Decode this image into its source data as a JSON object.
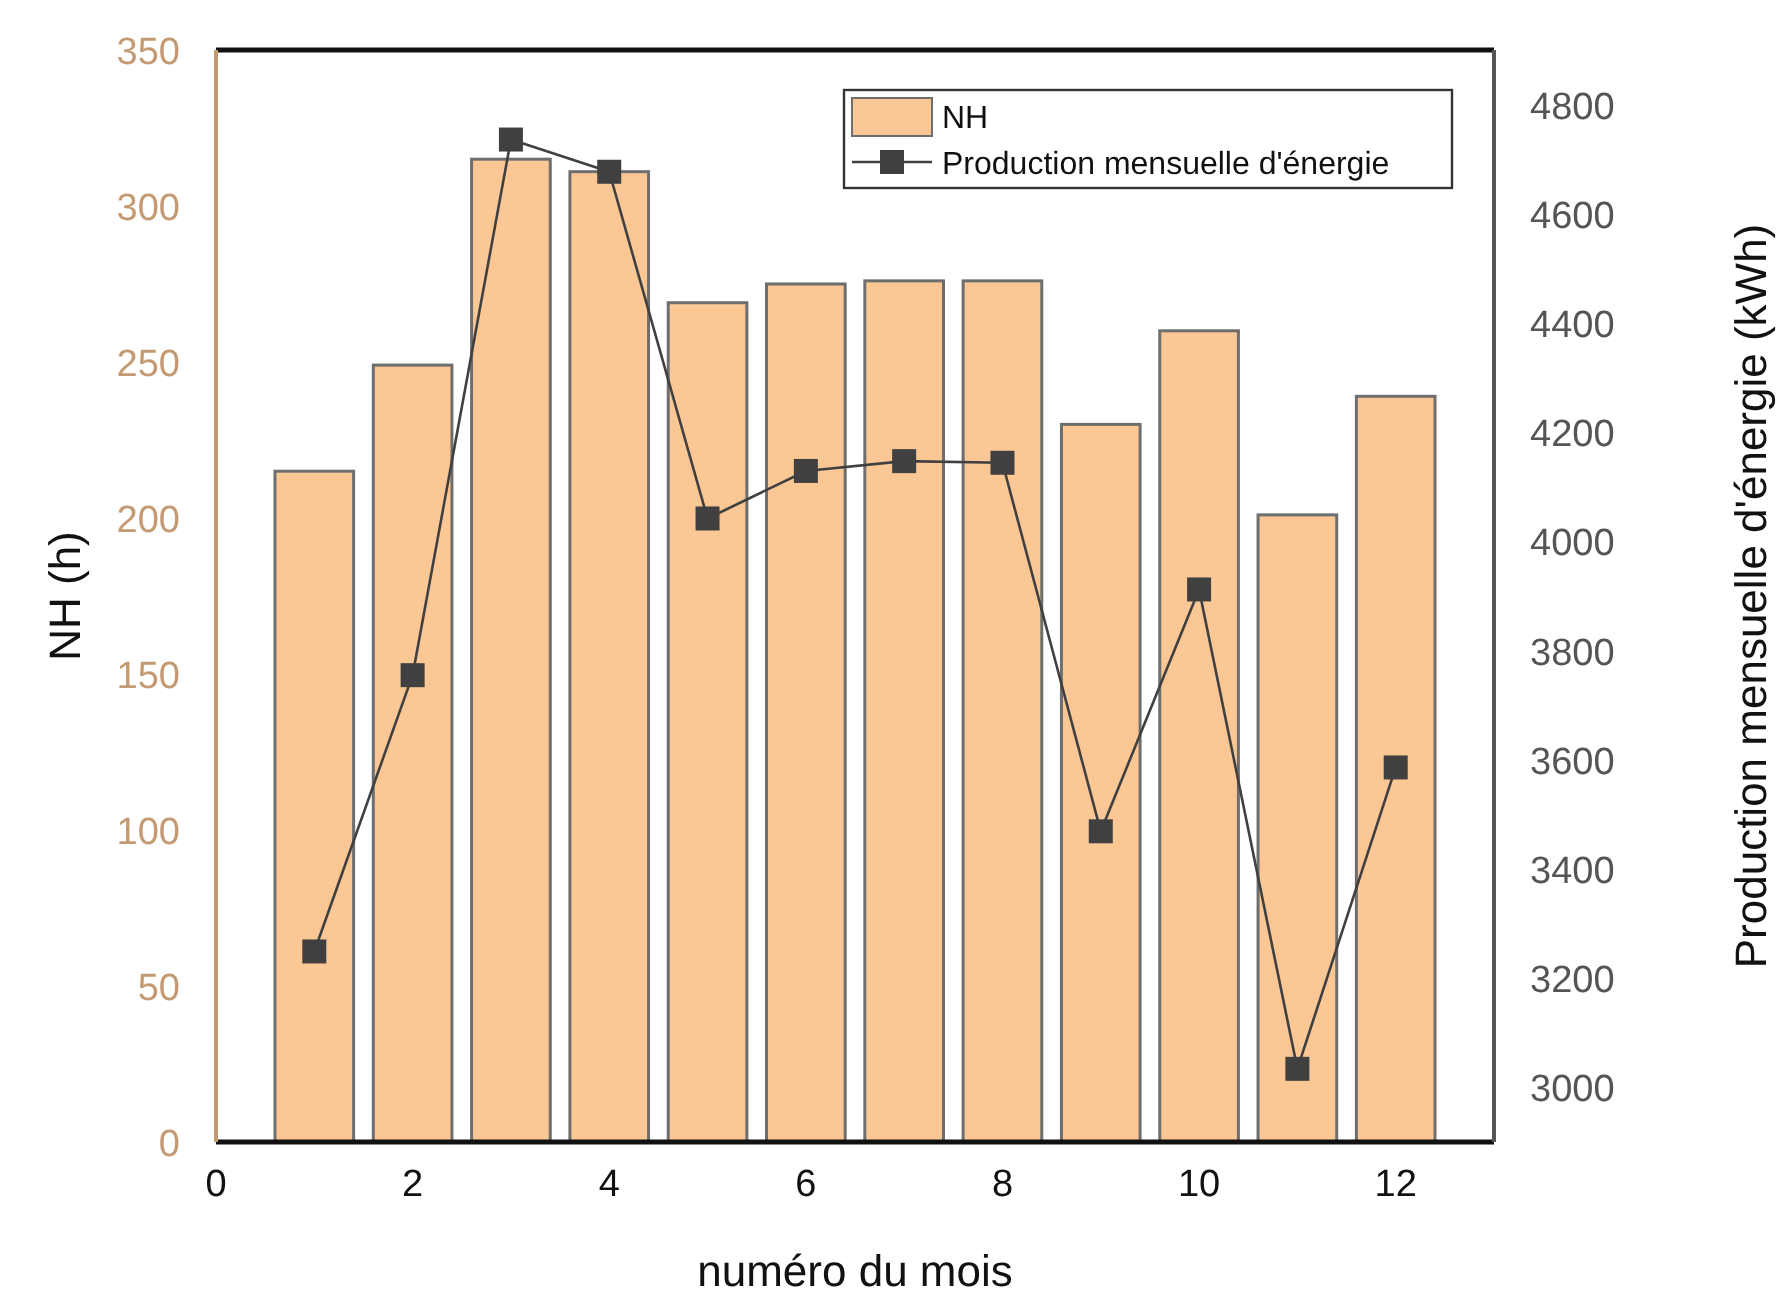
{
  "chart_data": {
    "type": "bar",
    "xlabel": "numéro du mois",
    "ylabel": "NH (h)",
    "y2label": "Production mensuelle d'énergie (kWh)",
    "x": [
      1,
      2,
      3,
      4,
      5,
      6,
      7,
      8,
      9,
      10,
      11,
      12
    ],
    "series": [
      {
        "name": "NH",
        "color": "#fbc895",
        "values": [
          215,
          249,
          315,
          311,
          269,
          275,
          276,
          276,
          230,
          260,
          201,
          239
        ]
      },
      {
        "name": "Production mensuelle d'énergie",
        "type": "line",
        "axis": "y2",
        "color": "#404040",
        "marker": "square",
        "values": [
          3249,
          3755,
          4736,
          4677,
          4042,
          4129,
          4147,
          4144,
          3469,
          3912,
          3034,
          3586
        ]
      }
    ],
    "xlim": [
      0,
      13
    ],
    "xticks": [
      0,
      2,
      4,
      6,
      8,
      10,
      12
    ],
    "ylim": [
      0,
      350
    ],
    "yticks": [
      0,
      50,
      100,
      150,
      200,
      250,
      300,
      350
    ],
    "y2lim": [
      2900,
      4900
    ],
    "y2ticks": [
      3000,
      3200,
      3400,
      3600,
      3800,
      4000,
      4200,
      4400,
      4600,
      4800
    ],
    "grid": false,
    "legend": "top right"
  }
}
